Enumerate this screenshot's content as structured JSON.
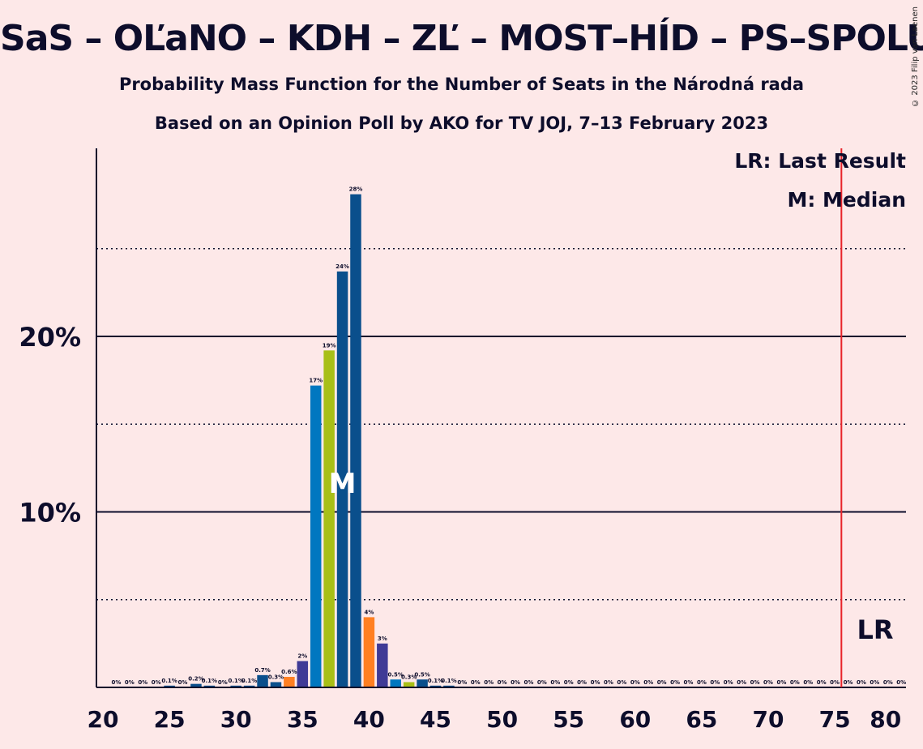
{
  "title": "SaS – OĽaNO – KDH – ZĽ – MOST–HÍD – PS–SPOLU",
  "subtitle": "Probability Mass Function for the Number of Seats in the Národná rada",
  "subtitle2": "Based on an Opinion Poll by AKO for TV JOJ, 7–13 February 2023",
  "copyright": "© 2023 Filip van Laenen",
  "legend": {
    "lr": "LR: Last Result",
    "median": "M: Median"
  },
  "markers": {
    "median_label": "M",
    "median_seat": 38,
    "lr_label": "LR",
    "last_result_seat": 76
  },
  "colors": {
    "background": "#fde8e8",
    "axis": "#0d0d2b",
    "lr_line": "#e8232a",
    "blue": "#0077c0",
    "green": "#a8bf17",
    "darkblue": "#0a4f8c",
    "orange": "#ff7f22",
    "purple": "#3f3a96"
  },
  "chart_data": {
    "type": "bar",
    "xlabel": "",
    "ylabel": "",
    "xlim": [
      20,
      80
    ],
    "ylim": [
      0,
      30.5
    ],
    "x_ticks": [
      20,
      25,
      30,
      35,
      40,
      45,
      50,
      55,
      60,
      65,
      70,
      75,
      80
    ],
    "y_ticks": [
      {
        "value": 10,
        "label": "10%"
      },
      {
        "value": 20,
        "label": "20%"
      }
    ],
    "y_dotted": [
      5,
      15,
      25
    ],
    "bars": [
      {
        "seats": 21,
        "value": 0,
        "label": "0%",
        "color": "darkblue"
      },
      {
        "seats": 22,
        "value": 0,
        "label": "0%",
        "color": "darkblue"
      },
      {
        "seats": 23,
        "value": 0,
        "label": "0%",
        "color": "darkblue"
      },
      {
        "seats": 24,
        "value": 0,
        "label": "0%",
        "color": "darkblue"
      },
      {
        "seats": 25,
        "value": 0.1,
        "label": "0.1%",
        "color": "darkblue"
      },
      {
        "seats": 26,
        "value": 0,
        "label": "0%",
        "color": "darkblue"
      },
      {
        "seats": 27,
        "value": 0.2,
        "label": "0.2%",
        "color": "darkblue"
      },
      {
        "seats": 28,
        "value": 0.1,
        "label": "0.1%",
        "color": "darkblue"
      },
      {
        "seats": 29,
        "value": 0,
        "label": "0%",
        "color": "darkblue"
      },
      {
        "seats": 30,
        "value": 0.1,
        "label": "0.1%",
        "color": "darkblue"
      },
      {
        "seats": 31,
        "value": 0.1,
        "label": "0.1%",
        "color": "darkblue"
      },
      {
        "seats": 32,
        "value": 0.7,
        "label": "0.7%",
        "color": "darkblue"
      },
      {
        "seats": 33,
        "value": 0.3,
        "label": "0.3%",
        "color": "darkblue"
      },
      {
        "seats": 34,
        "value": 0.6,
        "label": "0.6%",
        "color": "orange"
      },
      {
        "seats": 35,
        "value": 1.5,
        "label": "2%",
        "color": "purple"
      },
      {
        "seats": 36,
        "value": 17.2,
        "label": "17%",
        "color": "blue"
      },
      {
        "seats": 37,
        "value": 19.2,
        "label": "19%",
        "color": "green"
      },
      {
        "seats": 38,
        "value": 23.7,
        "label": "24%",
        "color": "darkblue"
      },
      {
        "seats": 39,
        "value": 28.1,
        "label": "28%",
        "color": "darkblue"
      },
      {
        "seats": 40,
        "value": 4.0,
        "label": "4%",
        "color": "orange"
      },
      {
        "seats": 41,
        "value": 2.5,
        "label": "3%",
        "color": "purple"
      },
      {
        "seats": 42,
        "value": 0.45,
        "label": "0.5%",
        "color": "blue"
      },
      {
        "seats": 43,
        "value": 0.3,
        "label": "0.3%",
        "color": "green"
      },
      {
        "seats": 44,
        "value": 0.45,
        "label": "0.5%",
        "color": "darkblue"
      },
      {
        "seats": 45,
        "value": 0.1,
        "label": "0.1%",
        "color": "darkblue"
      },
      {
        "seats": 46,
        "value": 0.1,
        "label": "0.1%",
        "color": "darkblue"
      },
      {
        "seats": 47,
        "value": 0,
        "label": "0%",
        "color": "darkblue"
      },
      {
        "seats": 48,
        "value": 0,
        "label": "0%",
        "color": "darkblue"
      },
      {
        "seats": 49,
        "value": 0,
        "label": "0%",
        "color": "darkblue"
      },
      {
        "seats": 50,
        "value": 0,
        "label": "0%",
        "color": "darkblue"
      },
      {
        "seats": 51,
        "value": 0,
        "label": "0%",
        "color": "darkblue"
      },
      {
        "seats": 52,
        "value": 0,
        "label": "0%",
        "color": "darkblue"
      },
      {
        "seats": 53,
        "value": 0,
        "label": "0%",
        "color": "darkblue"
      },
      {
        "seats": 54,
        "value": 0,
        "label": "0%",
        "color": "darkblue"
      },
      {
        "seats": 55,
        "value": 0,
        "label": "0%",
        "color": "darkblue"
      },
      {
        "seats": 56,
        "value": 0,
        "label": "0%",
        "color": "darkblue"
      },
      {
        "seats": 57,
        "value": 0,
        "label": "0%",
        "color": "darkblue"
      },
      {
        "seats": 58,
        "value": 0,
        "label": "0%",
        "color": "darkblue"
      },
      {
        "seats": 59,
        "value": 0,
        "label": "0%",
        "color": "darkblue"
      },
      {
        "seats": 60,
        "value": 0,
        "label": "0%",
        "color": "darkblue"
      },
      {
        "seats": 61,
        "value": 0,
        "label": "0%",
        "color": "darkblue"
      },
      {
        "seats": 62,
        "value": 0,
        "label": "0%",
        "color": "darkblue"
      },
      {
        "seats": 63,
        "value": 0,
        "label": "0%",
        "color": "darkblue"
      },
      {
        "seats": 64,
        "value": 0,
        "label": "0%",
        "color": "darkblue"
      },
      {
        "seats": 65,
        "value": 0,
        "label": "0%",
        "color": "darkblue"
      },
      {
        "seats": 66,
        "value": 0,
        "label": "0%",
        "color": "darkblue"
      },
      {
        "seats": 67,
        "value": 0,
        "label": "0%",
        "color": "darkblue"
      },
      {
        "seats": 68,
        "value": 0,
        "label": "0%",
        "color": "darkblue"
      },
      {
        "seats": 69,
        "value": 0,
        "label": "0%",
        "color": "darkblue"
      },
      {
        "seats": 70,
        "value": 0,
        "label": "0%",
        "color": "darkblue"
      },
      {
        "seats": 71,
        "value": 0,
        "label": "0%",
        "color": "darkblue"
      },
      {
        "seats": 72,
        "value": 0,
        "label": "0%",
        "color": "darkblue"
      },
      {
        "seats": 73,
        "value": 0,
        "label": "0%",
        "color": "darkblue"
      },
      {
        "seats": 74,
        "value": 0,
        "label": "0%",
        "color": "darkblue"
      },
      {
        "seats": 75,
        "value": 0,
        "label": "0%",
        "color": "darkblue"
      },
      {
        "seats": 76,
        "value": 0,
        "label": "0%",
        "color": "darkblue"
      },
      {
        "seats": 77,
        "value": 0,
        "label": "0%",
        "color": "darkblue"
      },
      {
        "seats": 78,
        "value": 0,
        "label": "0%",
        "color": "darkblue"
      },
      {
        "seats": 79,
        "value": 0,
        "label": "0%",
        "color": "darkblue"
      },
      {
        "seats": 80,
        "value": 0,
        "label": "0%",
        "color": "darkblue"
      }
    ]
  }
}
